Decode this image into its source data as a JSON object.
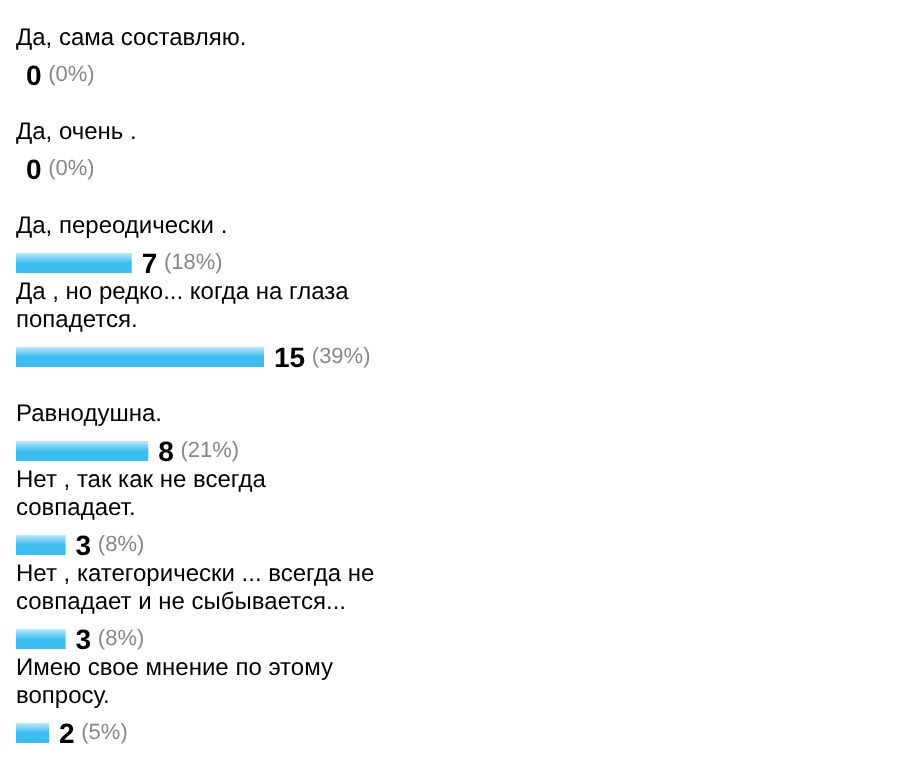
{
  "chart_data": {
    "type": "bar",
    "orientation": "horizontal",
    "categories": [
      "Да, сама составляю.",
      "Да, очень .",
      "Да, переодически .",
      "Да , но редко... когда на глаза попадется.",
      "Равнодушна.",
      "Нет , так как не всегда совпадает.",
      "Нет , категорически ... всегда не совпадает и не сыбывается...",
      "Имею свое мнение по этому вопросу."
    ],
    "values": [
      0,
      0,
      7,
      15,
      8,
      3,
      3,
      2
    ],
    "value_labels": [
      "0 (0%)",
      "0 (0%)",
      "7 (18%)",
      "15 (39%)",
      "8 (21%)",
      "3 (8%)",
      "3 (8%)",
      "2 (5%)"
    ],
    "color": "#3dbcef"
  }
}
